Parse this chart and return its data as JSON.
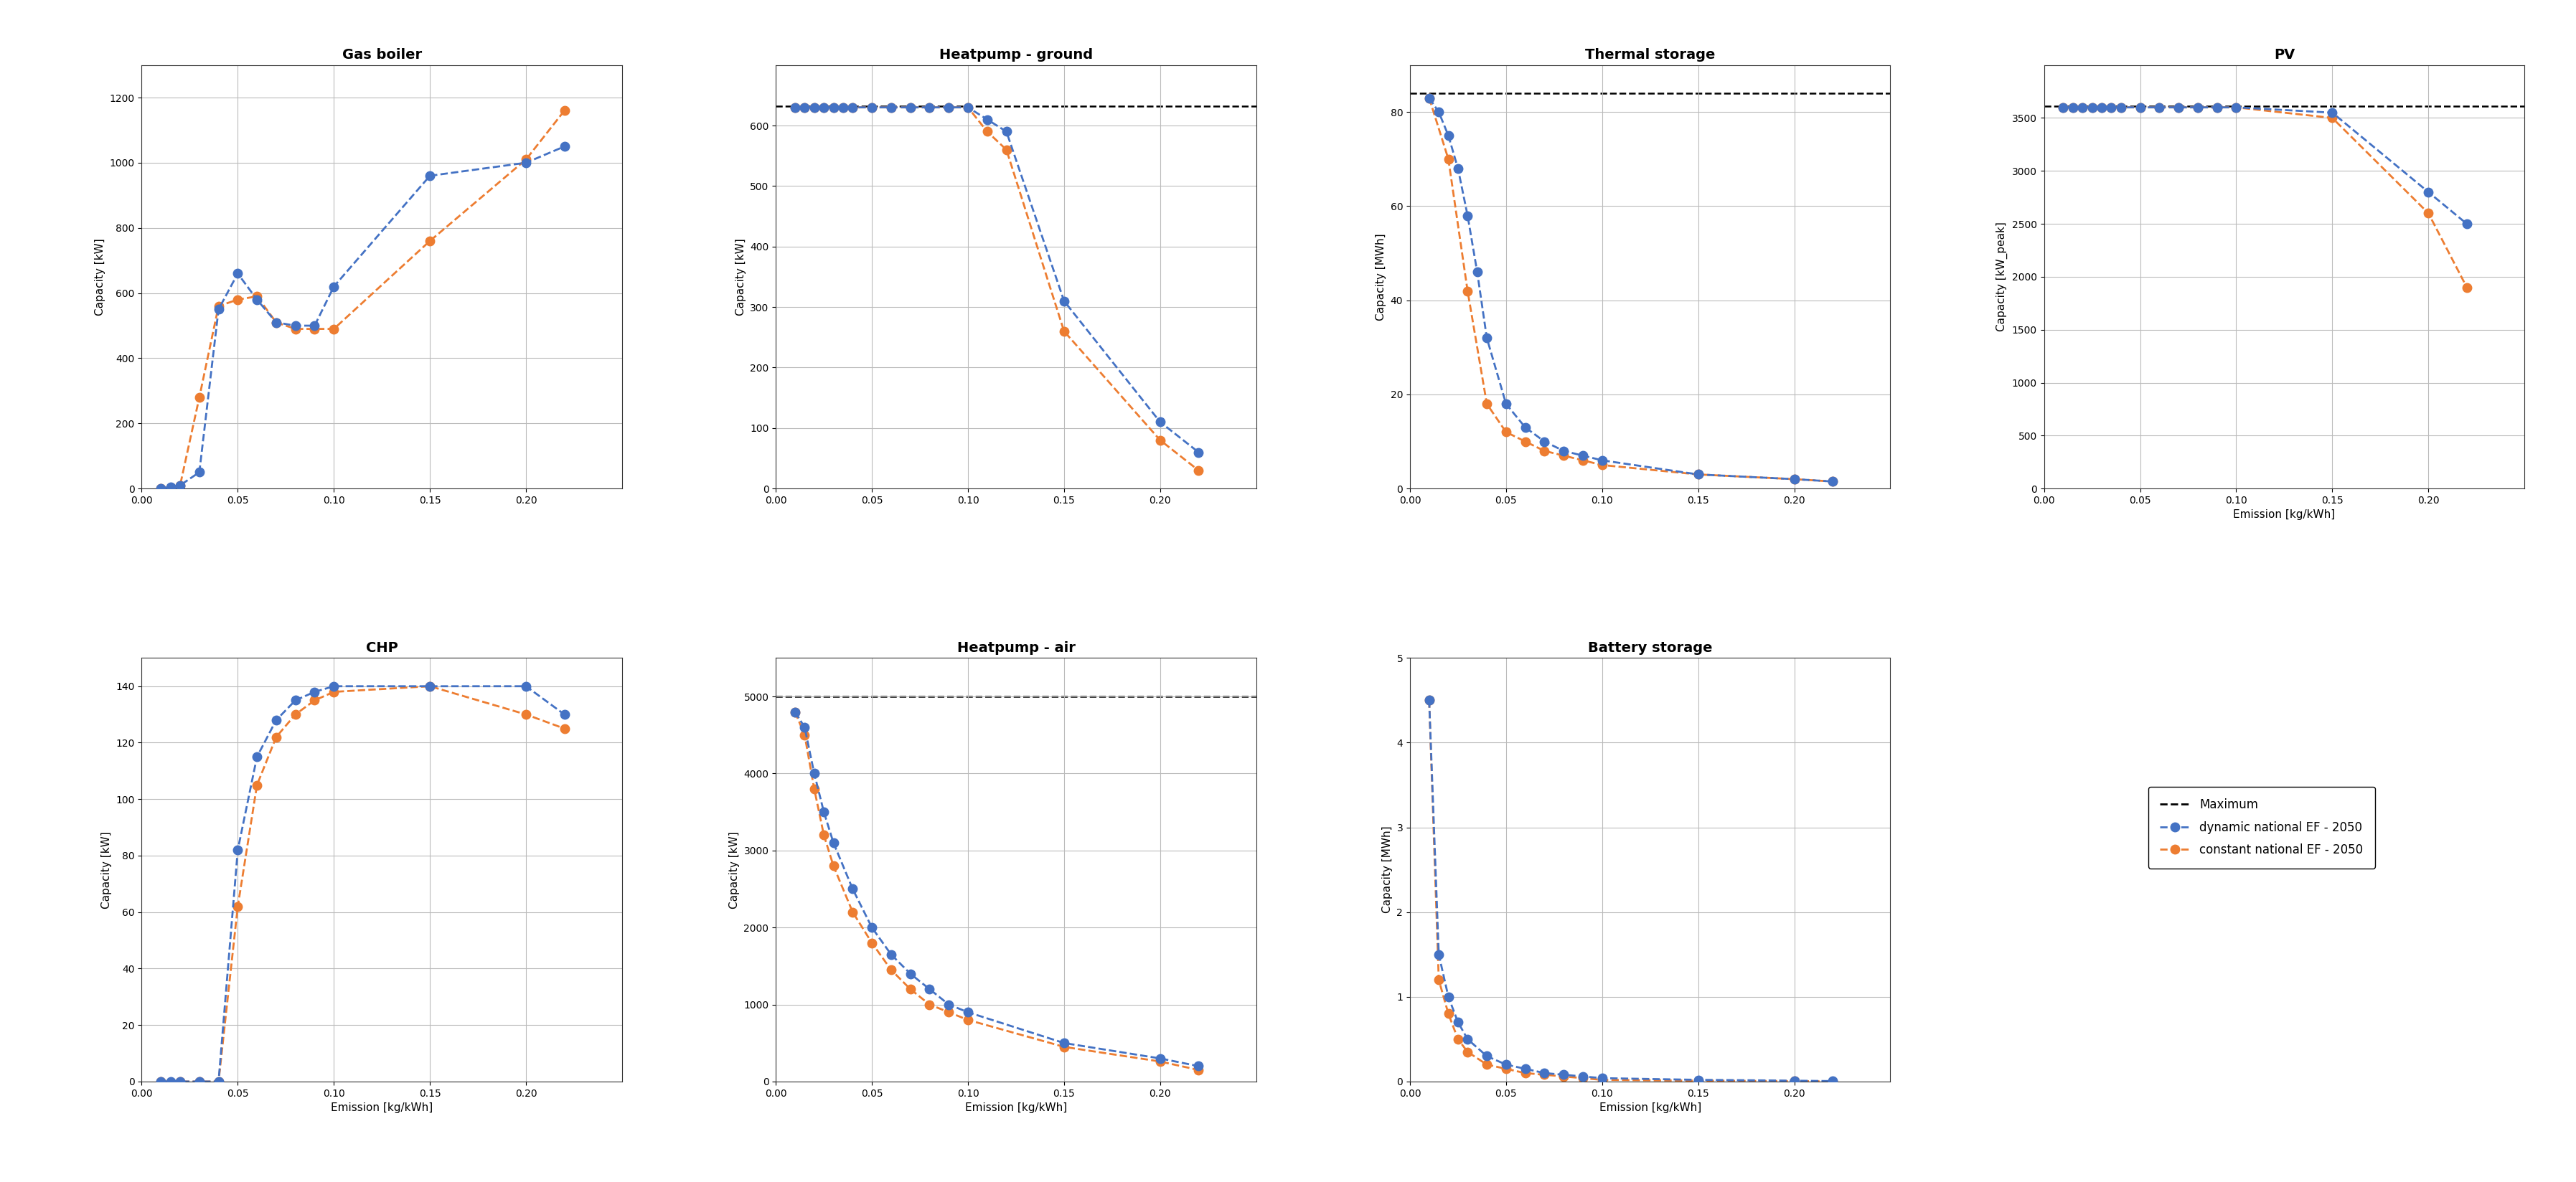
{
  "blue_color": "#4472C4",
  "orange_color": "#ED7D31",
  "marker_size": 9,
  "linewidth": 2.0,
  "gas_boiler": {
    "title": "Gas boiler",
    "ylabel": "Capacity [kW]",
    "ylim": [
      0,
      1300
    ],
    "yticks": [
      0,
      200,
      400,
      600,
      800,
      1000,
      1200
    ],
    "blue_x": [
      0.01,
      0.015,
      0.02,
      0.03,
      0.04,
      0.05,
      0.06,
      0.07,
      0.08,
      0.09,
      0.1,
      0.15,
      0.2,
      0.22
    ],
    "blue_y": [
      0,
      5,
      10,
      50,
      550,
      660,
      580,
      510,
      500,
      500,
      620,
      960,
      1000,
      1050
    ],
    "orange_x": [
      0.01,
      0.02,
      0.03,
      0.04,
      0.05,
      0.06,
      0.07,
      0.08,
      0.09,
      0.1,
      0.15,
      0.2,
      0.22
    ],
    "orange_y": [
      0,
      10,
      280,
      560,
      580,
      590,
      510,
      490,
      490,
      490,
      760,
      1010,
      1160
    ],
    "max_line": null
  },
  "hp_ground": {
    "title": "Heatpump - ground",
    "ylabel": "Capacity [kW]",
    "ylim": [
      0,
      700
    ],
    "yticks": [
      0,
      100,
      200,
      300,
      400,
      500,
      600
    ],
    "blue_x": [
      0.01,
      0.015,
      0.02,
      0.025,
      0.03,
      0.035,
      0.04,
      0.05,
      0.06,
      0.07,
      0.08,
      0.09,
      0.1,
      0.11,
      0.12,
      0.15,
      0.2,
      0.22
    ],
    "blue_y": [
      630,
      630,
      630,
      630,
      630,
      630,
      630,
      630,
      630,
      630,
      630,
      630,
      630,
      610,
      590,
      310,
      110,
      60
    ],
    "orange_x": [
      0.01,
      0.015,
      0.02,
      0.025,
      0.03,
      0.035,
      0.04,
      0.05,
      0.06,
      0.07,
      0.08,
      0.09,
      0.1,
      0.11,
      0.12,
      0.15,
      0.2,
      0.22
    ],
    "orange_y": [
      630,
      630,
      630,
      630,
      630,
      630,
      630,
      630,
      630,
      630,
      630,
      630,
      630,
      590,
      560,
      260,
      80,
      30
    ],
    "max_line": 632
  },
  "thermal_storage": {
    "title": "Thermal storage",
    "ylabel": "Capacity [MWh]",
    "ylim": [
      0,
      90
    ],
    "yticks": [
      0,
      20,
      40,
      60,
      80
    ],
    "blue_x": [
      0.01,
      0.015,
      0.02,
      0.025,
      0.03,
      0.035,
      0.04,
      0.05,
      0.06,
      0.07,
      0.08,
      0.09,
      0.1,
      0.15,
      0.2,
      0.22
    ],
    "blue_y": [
      83,
      80,
      75,
      68,
      58,
      46,
      32,
      18,
      13,
      10,
      8,
      7,
      6,
      3,
      2,
      1.5
    ],
    "orange_x": [
      0.01,
      0.02,
      0.03,
      0.04,
      0.05,
      0.06,
      0.07,
      0.08,
      0.09,
      0.1,
      0.15,
      0.2,
      0.22
    ],
    "orange_y": [
      83,
      70,
      42,
      18,
      12,
      10,
      8,
      7,
      6,
      5,
      3,
      2,
      1.5
    ],
    "max_line": 84
  },
  "pv": {
    "title": "PV",
    "ylabel": "Capacity [kW_peak]",
    "ylim": [
      0,
      4000
    ],
    "yticks": [
      0,
      500,
      1000,
      1500,
      2000,
      2500,
      3000,
      3500
    ],
    "blue_x": [
      0.01,
      0.015,
      0.02,
      0.025,
      0.03,
      0.035,
      0.04,
      0.05,
      0.06,
      0.07,
      0.08,
      0.09,
      0.1,
      0.15,
      0.2,
      0.22
    ],
    "blue_y": [
      3600,
      3600,
      3600,
      3600,
      3600,
      3600,
      3600,
      3600,
      3600,
      3600,
      3600,
      3600,
      3600,
      3550,
      2800,
      2500
    ],
    "orange_x": [
      0.01,
      0.015,
      0.02,
      0.025,
      0.03,
      0.035,
      0.04,
      0.05,
      0.06,
      0.07,
      0.08,
      0.09,
      0.1,
      0.15,
      0.2,
      0.22
    ],
    "orange_y": [
      3600,
      3600,
      3600,
      3600,
      3600,
      3600,
      3600,
      3600,
      3600,
      3600,
      3600,
      3600,
      3600,
      3500,
      2600,
      1900
    ],
    "max_line": 3610
  },
  "chp": {
    "title": "CHP",
    "ylabel": "Capacity [kW]",
    "ylim": [
      0,
      150
    ],
    "yticks": [
      0,
      20,
      40,
      60,
      80,
      100,
      120,
      140
    ],
    "blue_x": [
      0.01,
      0.015,
      0.02,
      0.03,
      0.04,
      0.05,
      0.06,
      0.07,
      0.08,
      0.09,
      0.1,
      0.15,
      0.2,
      0.22
    ],
    "blue_y": [
      0,
      0,
      0,
      0,
      0,
      82,
      115,
      128,
      135,
      138,
      140,
      140,
      140,
      130
    ],
    "orange_x": [
      0.01,
      0.02,
      0.03,
      0.04,
      0.05,
      0.06,
      0.07,
      0.08,
      0.09,
      0.1,
      0.15,
      0.2,
      0.22
    ],
    "orange_y": [
      0,
      0,
      0,
      0,
      62,
      105,
      122,
      130,
      135,
      138,
      140,
      130,
      125
    ],
    "max_line": null
  },
  "hp_air": {
    "title": "Heatpump - air",
    "ylabel": "Capacity [kW]",
    "ylim": [
      0,
      5500
    ],
    "yticks": [
      0,
      1000,
      2000,
      3000,
      4000,
      5000
    ],
    "blue_x": [
      0.01,
      0.015,
      0.02,
      0.025,
      0.03,
      0.04,
      0.05,
      0.06,
      0.07,
      0.08,
      0.09,
      0.1,
      0.15,
      0.2,
      0.22
    ],
    "blue_y": [
      4800,
      4600,
      4000,
      3500,
      3100,
      2500,
      2000,
      1650,
      1400,
      1200,
      1000,
      900,
      500,
      300,
      200
    ],
    "orange_x": [
      0.01,
      0.015,
      0.02,
      0.025,
      0.03,
      0.04,
      0.05,
      0.06,
      0.07,
      0.08,
      0.09,
      0.1,
      0.15,
      0.2,
      0.22
    ],
    "orange_y": [
      4800,
      4500,
      3800,
      3200,
      2800,
      2200,
      1800,
      1450,
      1200,
      1000,
      900,
      800,
      450,
      260,
      150
    ],
    "max_line": 5000
  },
  "battery": {
    "title": "Battery storage",
    "ylabel": "Capacity [MWh]",
    "ylim": [
      0,
      5
    ],
    "yticks": [
      0,
      1,
      2,
      3,
      4,
      5
    ],
    "blue_x": [
      0.01,
      0.015,
      0.02,
      0.025,
      0.03,
      0.04,
      0.05,
      0.06,
      0.07,
      0.08,
      0.09,
      0.1,
      0.15,
      0.2,
      0.22
    ],
    "blue_y": [
      4.5,
      1.5,
      1.0,
      0.7,
      0.5,
      0.3,
      0.2,
      0.15,
      0.1,
      0.08,
      0.06,
      0.04,
      0.02,
      0.01,
      0.005
    ],
    "orange_x": [
      0.01,
      0.015,
      0.02,
      0.025,
      0.03,
      0.04,
      0.05,
      0.06,
      0.07,
      0.08,
      0.09,
      0.1,
      0.15,
      0.2,
      0.22
    ],
    "orange_y": [
      4.5,
      1.2,
      0.8,
      0.5,
      0.35,
      0.2,
      0.15,
      0.1,
      0.08,
      0.06,
      0.04,
      0.02,
      0.01,
      0.005,
      0.002
    ],
    "max_line": null
  },
  "xlabel": "Emission [kg/kWh]",
  "xlim": [
    0.0,
    0.25
  ],
  "xticks": [
    0.0,
    0.05,
    0.1,
    0.15,
    0.2
  ],
  "legend_labels": [
    "Maximum",
    "dynamic national EF - 2050",
    "constant national EF - 2050"
  ],
  "bg_color": "#ffffff",
  "grid_color": "#bbbbbb",
  "title_fontsize": 14,
  "label_fontsize": 11,
  "tick_fontsize": 10,
  "legend_fontsize": 12
}
